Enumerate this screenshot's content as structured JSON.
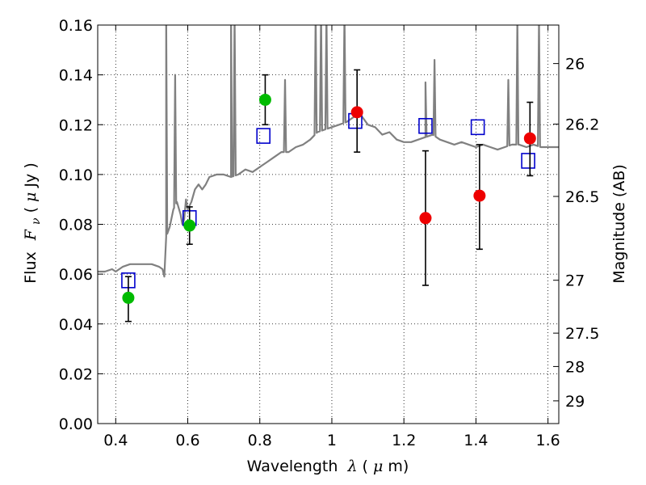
{
  "chart_data": {
    "type": "scatter",
    "xlabel_text": "Wavelength",
    "xlabel_symbol": "λ",
    "xlabel_unit_open": " (",
    "xlabel_unit_mu": "μ",
    "xlabel_unit_close": "m)",
    "ylabel_text": "Flux",
    "ylabel_symbol": "F",
    "ylabel_subscript": "ν",
    "ylabel_unit_open": " ( ",
    "ylabel_unit_mu": "μ",
    "ylabel_unit_close": "Jy )",
    "y2label": "Magnitude (AB)",
    "xlim": [
      0.35,
      1.63
    ],
    "ylim": [
      0.0,
      0.16
    ],
    "x_ticks": [
      {
        "value": 0.4,
        "label": "0.4"
      },
      {
        "value": 0.6,
        "label": "0.6"
      },
      {
        "value": 0.8,
        "label": "0.8"
      },
      {
        "value": 1.0,
        "label": "1"
      },
      {
        "value": 1.2,
        "label": "1.2"
      },
      {
        "value": 1.4,
        "label": "1.4"
      },
      {
        "value": 1.6,
        "label": "1.6"
      }
    ],
    "y_ticks": [
      {
        "value": 0.0,
        "label": "0.00"
      },
      {
        "value": 0.02,
        "label": "0.02"
      },
      {
        "value": 0.04,
        "label": "0.04"
      },
      {
        "value": 0.06,
        "label": "0.06"
      },
      {
        "value": 0.08,
        "label": "0.08"
      },
      {
        "value": 0.1,
        "label": "0.10"
      },
      {
        "value": 0.12,
        "label": "0.12"
      },
      {
        "value": 0.14,
        "label": "0.14"
      },
      {
        "value": 0.16,
        "label": "0.16"
      }
    ],
    "y2_ticks": [
      {
        "magnitude": 26.0,
        "label": "26"
      },
      {
        "magnitude": 26.2,
        "label": "26.2"
      },
      {
        "magnitude": 26.5,
        "label": "26.5"
      },
      {
        "magnitude": 27.0,
        "label": "27"
      },
      {
        "magnitude": 27.5,
        "label": "27.5"
      },
      {
        "magnitude": 28.0,
        "label": "28"
      },
      {
        "magnitude": 29.0,
        "label": "29"
      }
    ],
    "grid": true,
    "colors": {
      "template": "#808080",
      "model_squares": "#0000cc",
      "green_points": "#00bb00",
      "red_points": "#ee0000",
      "errorbars": "#000000"
    },
    "series": [
      {
        "name": "SED template spectrum",
        "kind": "line",
        "x": [
          0.35,
          0.37,
          0.39,
          0.4,
          0.42,
          0.44,
          0.46,
          0.48,
          0.5,
          0.52,
          0.53,
          0.535,
          0.54,
          0.55,
          0.56,
          0.57,
          0.58,
          0.585,
          0.59,
          0.595,
          0.6,
          0.61,
          0.62,
          0.63,
          0.64,
          0.65,
          0.66,
          0.68,
          0.7,
          0.72,
          0.74,
          0.76,
          0.78,
          0.8,
          0.82,
          0.84,
          0.86,
          0.88,
          0.9,
          0.92,
          0.94,
          0.96,
          0.98,
          1.0,
          1.02,
          1.04,
          1.06,
          1.08,
          1.1,
          1.12,
          1.14,
          1.16,
          1.18,
          1.2,
          1.22,
          1.24,
          1.26,
          1.28,
          1.3,
          1.32,
          1.34,
          1.36,
          1.38,
          1.4,
          1.42,
          1.44,
          1.46,
          1.48,
          1.5,
          1.52,
          1.54,
          1.56,
          1.58,
          1.6,
          1.63
        ],
        "y": [
          0.061,
          0.061,
          0.062,
          0.061,
          0.063,
          0.064,
          0.064,
          0.064,
          0.064,
          0.063,
          0.062,
          0.059,
          0.075,
          0.079,
          0.086,
          0.089,
          0.084,
          0.08,
          0.082,
          0.09,
          0.086,
          0.089,
          0.094,
          0.096,
          0.094,
          0.096,
          0.099,
          0.1,
          0.1,
          0.099,
          0.1,
          0.102,
          0.101,
          0.103,
          0.105,
          0.107,
          0.109,
          0.109,
          0.111,
          0.112,
          0.114,
          0.117,
          0.118,
          0.119,
          0.12,
          0.121,
          0.123,
          0.124,
          0.12,
          0.119,
          0.116,
          0.117,
          0.114,
          0.113,
          0.113,
          0.114,
          0.115,
          0.116,
          0.114,
          0.113,
          0.112,
          0.113,
          0.112,
          0.111,
          0.112,
          0.111,
          0.11,
          0.111,
          0.112,
          0.112,
          0.111,
          0.112,
          0.111,
          0.111,
          0.111
        ],
        "emission_lines": [
          {
            "x": 0.54,
            "y": 0.165
          },
          {
            "x": 0.565,
            "y": 0.14
          },
          {
            "x": 0.72,
            "y": 0.165
          },
          {
            "x": 0.73,
            "y": 0.165
          },
          {
            "x": 0.87,
            "y": 0.138
          },
          {
            "x": 0.955,
            "y": 0.165
          },
          {
            "x": 0.97,
            "y": 0.165
          },
          {
            "x": 0.985,
            "y": 0.165
          },
          {
            "x": 1.035,
            "y": 0.165
          },
          {
            "x": 1.26,
            "y": 0.137
          },
          {
            "x": 1.285,
            "y": 0.146
          },
          {
            "x": 1.49,
            "y": 0.138
          },
          {
            "x": 1.515,
            "y": 0.163
          },
          {
            "x": 1.575,
            "y": 0.163
          }
        ]
      },
      {
        "name": "model band fluxes",
        "kind": "open-square",
        "x": [
          0.435,
          0.605,
          0.81,
          1.065,
          1.26,
          1.405,
          1.545
        ],
        "y": [
          0.0575,
          0.0825,
          0.1155,
          0.1215,
          0.1195,
          0.119,
          0.1055
        ]
      },
      {
        "name": "observed (green)",
        "kind": "circle",
        "x": [
          0.435,
          0.605,
          0.815
        ],
        "y": [
          0.0505,
          0.0795,
          0.13
        ],
        "err_low": [
          0.041,
          0.072,
          0.12
        ],
        "err_high": [
          0.059,
          0.087,
          0.14
        ]
      },
      {
        "name": "observed (red)",
        "kind": "circle",
        "x": [
          1.07,
          1.26,
          1.41,
          1.55
        ],
        "y": [
          0.125,
          0.0825,
          0.0915,
          0.1145
        ],
        "err_low": [
          0.109,
          0.0555,
          0.07,
          0.0995
        ],
        "err_high": [
          0.142,
          0.1095,
          0.112,
          0.129
        ]
      }
    ]
  }
}
